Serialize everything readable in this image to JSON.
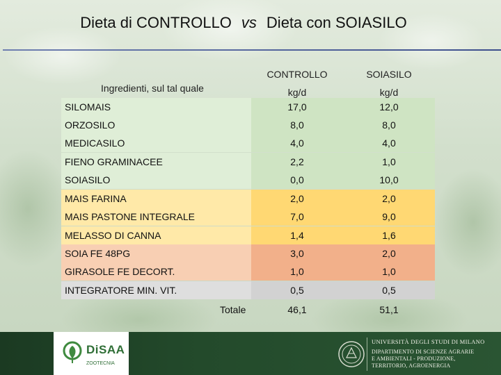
{
  "title": {
    "left": "Dieta di CONTROLLO",
    "vs": "vs",
    "right": "Dieta con SOIASILO"
  },
  "headers": {
    "ingredients": "Ingredienti, sul tal quale",
    "col1_name": "CONTROLLO",
    "col1_unit": "kg/d",
    "col2_name": "SOIASILO",
    "col2_unit": "kg/d"
  },
  "rows": [
    {
      "name": "SILOMAIS",
      "controllo": "17,0",
      "soiasilo": "12,0"
    },
    {
      "name": "ORZOSILO",
      "controllo": "8,0",
      "soiasilo": "8,0"
    },
    {
      "name": "MEDICASILO",
      "controllo": "4,0",
      "soiasilo": "4,0"
    },
    {
      "name": "FIENO GRAMINACEE",
      "controllo": "2,2",
      "soiasilo": "1,0"
    },
    {
      "name": "SOIASILO",
      "controllo": "0,0",
      "soiasilo": "10,0"
    },
    {
      "name": "MAIS FARINA",
      "controllo": "2,0",
      "soiasilo": "2,0"
    },
    {
      "name": "MAIS PASTONE INTEGRALE",
      "controllo": "7,0",
      "soiasilo": "9,0"
    },
    {
      "name": "MELASSO DI CANNA",
      "controllo": "1,4",
      "soiasilo": "1,6"
    },
    {
      "name": "SOIA FE 48PG",
      "controllo": "3,0",
      "soiasilo": "2,0"
    },
    {
      "name": "GIRASOLE FE DECORT.",
      "controllo": "1,0",
      "soiasilo": "1,0"
    },
    {
      "name": "INTEGRATORE MIN. VIT.",
      "controllo": "0,5",
      "soiasilo": "0,5"
    }
  ],
  "total": {
    "label": "Totale",
    "controllo": "46,1",
    "soiasilo": "51,1"
  },
  "footer": {
    "dept_logo": "DiSAA",
    "dept_sub": "ZOOTECNIA",
    "university": "UNIVERSITÀ DEGLI STUDI DI MILANO",
    "dept_line1": "DIPARTIMENTO DI SCIENZE AGRARIE",
    "dept_line2": "E AMBIENTALI - PRODUZIONE,",
    "dept_line3": "TERRITORIO, AGROENERGIA"
  },
  "colors": {
    "forage_label": "#dfeed7",
    "forage_value": "#cfe4c3",
    "cereal_label": "#ffe9a8",
    "cereal_value": "#ffd873",
    "protein_label": "#f8cfb3",
    "protein_value": "#f2b08a",
    "supplement_label": "#dedede",
    "supplement_value": "#d2d2d2",
    "footer": "#234a2b",
    "title_rule": "#3c4e8c"
  }
}
